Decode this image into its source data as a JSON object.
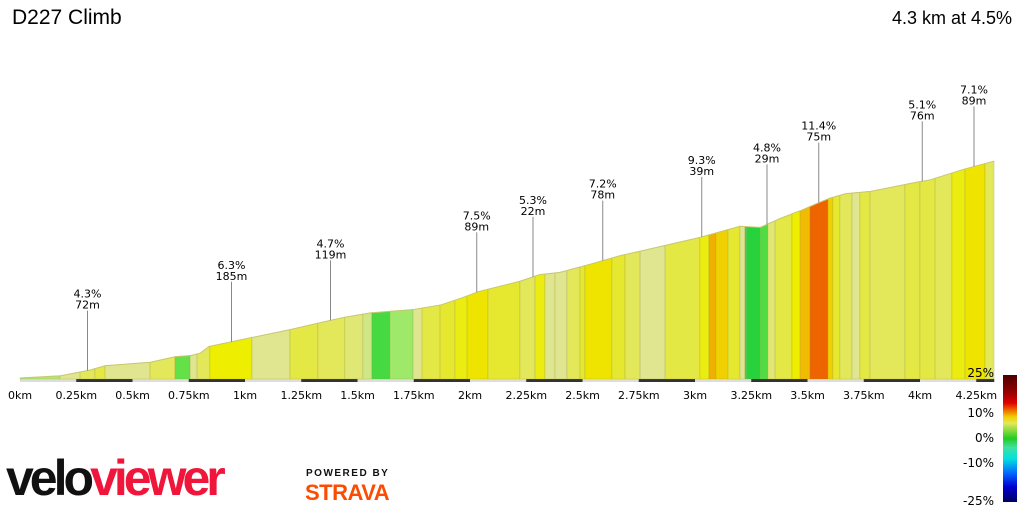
{
  "header": {
    "title": "D227 Climb",
    "summary": "4.3 km at 4.5%"
  },
  "chart_data": {
    "type": "area",
    "title": "D227 Climb",
    "xlabel": "",
    "ylabel": "",
    "xlim": [
      0,
      4.33
    ],
    "x_ticks": [
      "0km",
      "0.25km",
      "0.5km",
      "0.75km",
      "1km",
      "1.25km",
      "1.5km",
      "1.75km",
      "2km",
      "2.25km",
      "2.5km",
      "2.75km",
      "3km",
      "3.25km",
      "3.5km",
      "3.75km",
      "4km",
      "4.25km"
    ],
    "profile": {
      "km": [
        0,
        0.18,
        0.31,
        0.38,
        0.58,
        0.69,
        0.76,
        0.8,
        0.84,
        1.03,
        1.2,
        1.33,
        1.44,
        1.56,
        1.75,
        1.87,
        1.96,
        2.04,
        2.22,
        2.31,
        2.4,
        2.53,
        2.67,
        2.76,
        3.02,
        3.2,
        3.29,
        3.38,
        3.47,
        3.55,
        3.6,
        3.67,
        3.78,
        3.98,
        4.04,
        4.2,
        4.33
      ],
      "elevation_gain_m": [
        0,
        2,
        7,
        11,
        14,
        19,
        20,
        22,
        28,
        36,
        43,
        49,
        54,
        58,
        61,
        65,
        71,
        77,
        86,
        92,
        94,
        101,
        109,
        113,
        125,
        135,
        134,
        142,
        149,
        156,
        160,
        164,
        166,
        174,
        176,
        186,
        193
      ]
    },
    "segments": [
      [
        0,
        0.178,
        1.5
      ],
      [
        0.178,
        0.267,
        3
      ],
      [
        0.267,
        0.333,
        4
      ],
      [
        0.333,
        0.378,
        4.5
      ],
      [
        0.378,
        0.578,
        3
      ],
      [
        0.578,
        0.689,
        4
      ],
      [
        0.689,
        0.756,
        0.5
      ],
      [
        0.756,
        0.787,
        3
      ],
      [
        0.787,
        0.844,
        4
      ],
      [
        0.844,
        1.031,
        6.5
      ],
      [
        1.031,
        1.2,
        3
      ],
      [
        1.2,
        1.324,
        4.5
      ],
      [
        1.324,
        1.444,
        4
      ],
      [
        1.444,
        1.524,
        3.5
      ],
      [
        1.524,
        1.564,
        2.5
      ],
      [
        1.564,
        1.644,
        0
      ],
      [
        1.644,
        1.747,
        1
      ],
      [
        1.747,
        1.787,
        3
      ],
      [
        1.787,
        1.867,
        4.5
      ],
      [
        1.867,
        1.933,
        5
      ],
      [
        1.933,
        1.987,
        6
      ],
      [
        1.987,
        2.08,
        7
      ],
      [
        2.08,
        2.222,
        5
      ],
      [
        2.222,
        2.289,
        4
      ],
      [
        2.289,
        2.333,
        6
      ],
      [
        2.333,
        2.378,
        3
      ],
      [
        2.378,
        2.431,
        3
      ],
      [
        2.431,
        2.489,
        4
      ],
      [
        2.489,
        2.511,
        5
      ],
      [
        2.511,
        2.631,
        7
      ],
      [
        2.631,
        2.689,
        5
      ],
      [
        2.689,
        2.756,
        4
      ],
      [
        2.756,
        2.867,
        3
      ],
      [
        2.867,
        3.022,
        4.5
      ],
      [
        3.022,
        3.062,
        6
      ],
      [
        3.062,
        3.093,
        9.5
      ],
      [
        3.093,
        3.147,
        8
      ],
      [
        3.147,
        3.2,
        5
      ],
      [
        3.2,
        3.222,
        3
      ],
      [
        3.222,
        3.231,
        -1
      ],
      [
        3.231,
        3.289,
        -0.5
      ],
      [
        3.289,
        3.324,
        0.2
      ],
      [
        3.324,
        3.356,
        3.5
      ],
      [
        3.356,
        3.431,
        4.5
      ],
      [
        3.431,
        3.467,
        6.5
      ],
      [
        3.467,
        3.511,
        9
      ],
      [
        3.511,
        3.591,
        11.4
      ],
      [
        3.591,
        3.613,
        8
      ],
      [
        3.613,
        3.644,
        5
      ],
      [
        3.644,
        3.698,
        4
      ],
      [
        3.698,
        3.733,
        3
      ],
      [
        3.733,
        3.778,
        4.5
      ],
      [
        3.778,
        3.933,
        4
      ],
      [
        3.933,
        4.0,
        4.5
      ],
      [
        4.0,
        4.067,
        4.5
      ],
      [
        4.067,
        4.142,
        4
      ],
      [
        4.142,
        4.2,
        6
      ],
      [
        4.2,
        4.289,
        7
      ],
      [
        4.289,
        4.329,
        4
      ]
    ],
    "annotations": [
      {
        "km": 0.3,
        "grade": "4.3%",
        "length": "72m"
      },
      {
        "km": 0.94,
        "grade": "6.3%",
        "length": "185m"
      },
      {
        "km": 1.38,
        "grade": "4.7%",
        "length": "119m"
      },
      {
        "km": 2.03,
        "grade": "7.5%",
        "length": "89m"
      },
      {
        "km": 2.28,
        "grade": "5.3%",
        "length": "22m"
      },
      {
        "km": 2.59,
        "grade": "7.2%",
        "length": "78m"
      },
      {
        "km": 3.03,
        "grade": "9.3%",
        "length": "39m"
      },
      {
        "km": 3.32,
        "grade": "4.8%",
        "length": "29m"
      },
      {
        "km": 3.55,
        "grade": "11.4%",
        "length": "75m"
      },
      {
        "km": 4.01,
        "grade": "5.1%",
        "length": "76m"
      },
      {
        "km": 4.24,
        "grade": "7.1%",
        "length": "89m"
      }
    ],
    "color_scale": {
      "labels": [
        "25%",
        "10%",
        "0%",
        "-10%",
        "-25%"
      ],
      "range": [
        -25,
        25
      ]
    },
    "grid": false,
    "legend": "right"
  },
  "branding": {
    "logo_velo": "velo",
    "logo_viewer": "viewer",
    "powered_by": "POWERED BY",
    "strava": "STRAVA"
  }
}
